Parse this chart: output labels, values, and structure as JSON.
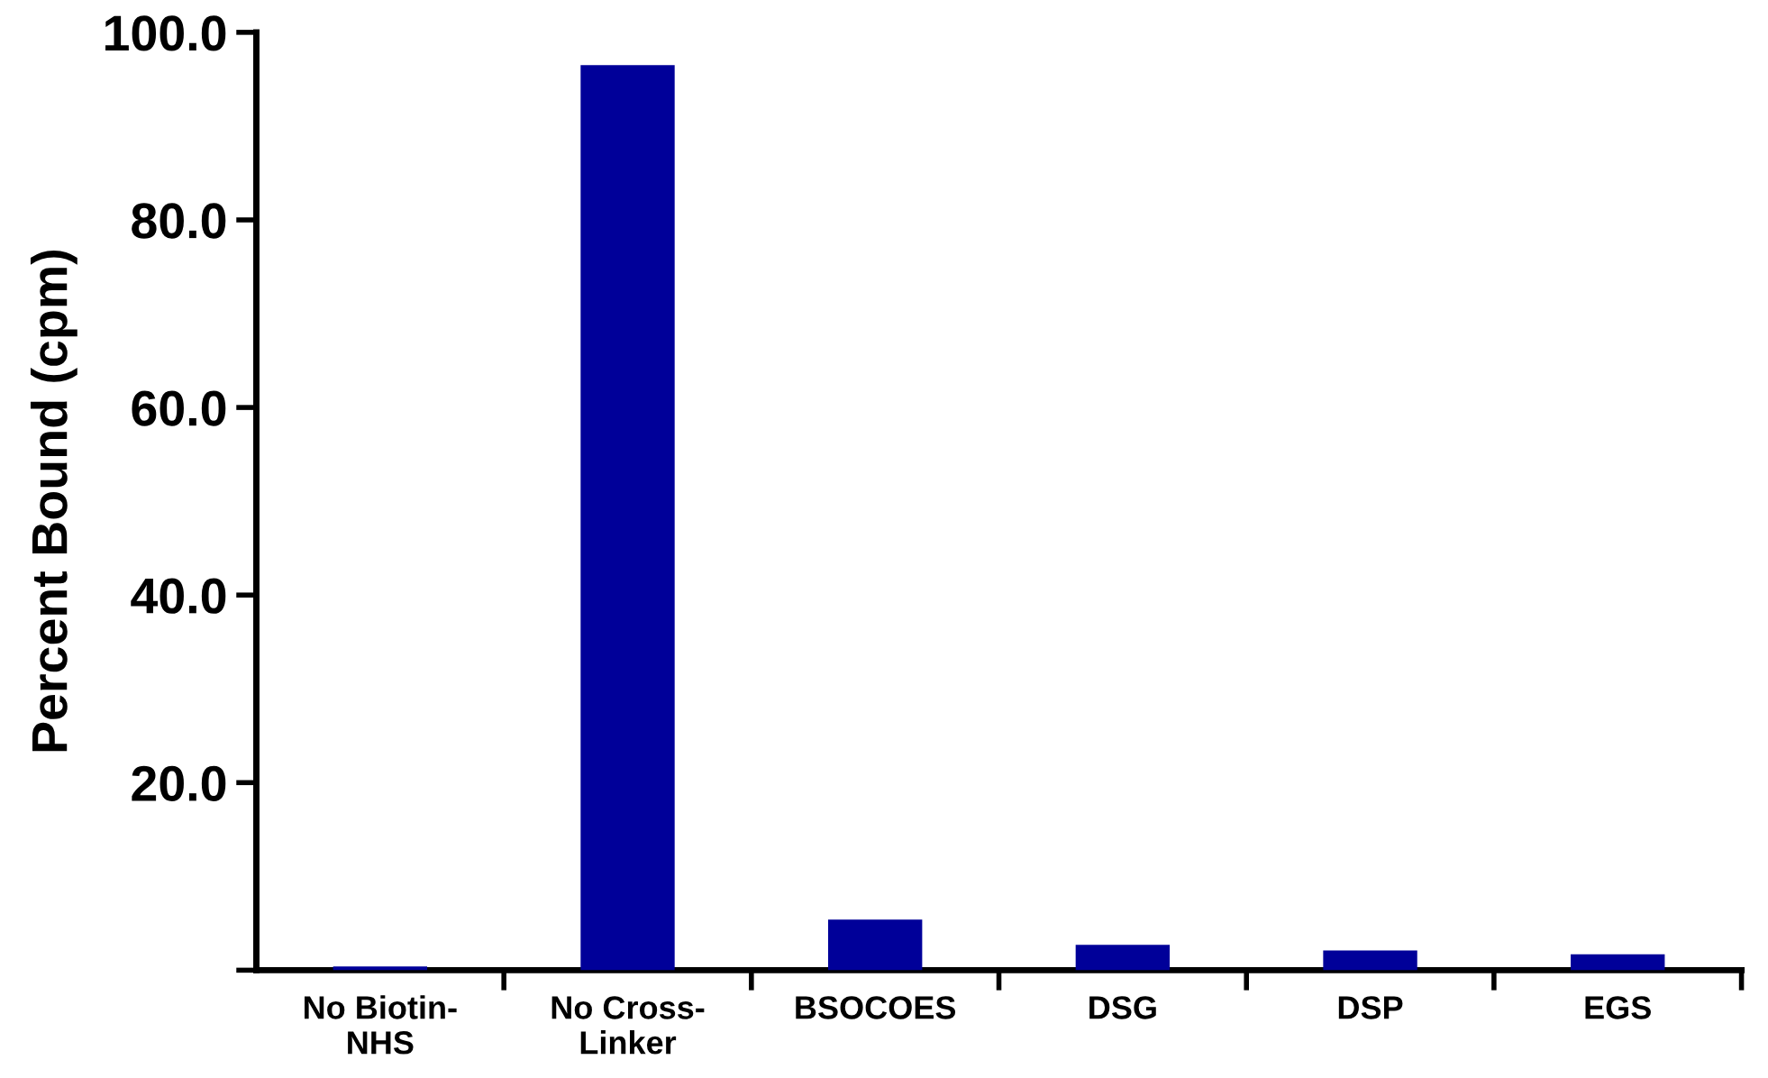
{
  "chart_data": {
    "type": "bar",
    "ylabel": "Percent Bound (cpm)",
    "categories": [
      "No Biotin-\nNHS",
      "No Cross-\nLinker",
      "BSOCOES",
      "DSG",
      "DSP",
      "EGS"
    ],
    "values": [
      0.4,
      96.5,
      5.4,
      2.7,
      2.1,
      1.7
    ],
    "color": "#000099",
    "ylim": [
      0,
      100
    ],
    "yticks": [
      {
        "value": 0,
        "label": null
      },
      {
        "value": 20,
        "label": "20.0"
      },
      {
        "value": 40,
        "label": "40.0"
      },
      {
        "value": 60,
        "label": "60.0"
      },
      {
        "value": 80,
        "label": "80.0"
      },
      {
        "value": 100,
        "label": "100.0"
      }
    ],
    "grid": false,
    "legend": false
  }
}
